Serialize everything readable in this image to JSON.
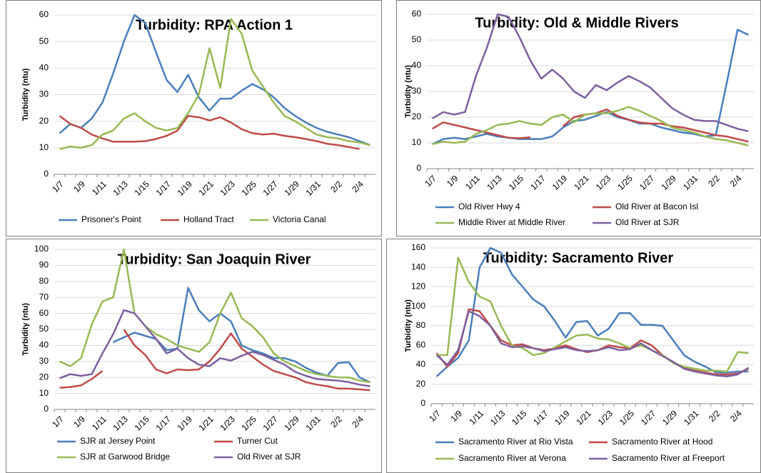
{
  "chart_data": [
    {
      "type": "line",
      "title": "Turbidity: RPA Action 1",
      "y_label": "Turbidity (ntu)",
      "categories": [
        "1/7",
        null,
        "1/9",
        null,
        "1/11",
        null,
        "1/13",
        null,
        "1/15",
        null,
        "1/17",
        null,
        "1/19",
        null,
        "1/21",
        null,
        "1/23",
        null,
        "1/25",
        null,
        "1/27",
        null,
        "1/29",
        null,
        "1/31",
        null,
        "2/2",
        null,
        "2/4",
        null
      ],
      "series": [
        {
          "name": "Prisoner's Point",
          "color": "#4a7ebb",
          "values": [
            15.5,
            19,
            17.5,
            21,
            27,
            38,
            50,
            60,
            57,
            46,
            35.5,
            31,
            37.5,
            29,
            24,
            28.5,
            28.5,
            31.5,
            34,
            32,
            29,
            25,
            22,
            19.5,
            17.5,
            16,
            15,
            14,
            12.5,
            11
          ]
        },
        {
          "name": "Holland Tract",
          "color": "#be4b48",
          "values": [
            22,
            19,
            17.5,
            15,
            13.5,
            12.3,
            12.3,
            12.3,
            12.5,
            13.3,
            14.5,
            16.5,
            22,
            21.5,
            20.3,
            21.5,
            19.5,
            17,
            15.5,
            15,
            15.3,
            14.5,
            14,
            13.3,
            12.5,
            11.5,
            11,
            10.3,
            9.5,
            null
          ]
        },
        {
          "name": "Victoria Canal",
          "color": "#98b954",
          "values": [
            9.5,
            10.5,
            10,
            11,
            15,
            16.5,
            21,
            23,
            20,
            17.5,
            16.5,
            17.5,
            23,
            30,
            47.5,
            32.5,
            58.5,
            53,
            39,
            33,
            27,
            22,
            20,
            17.5,
            15,
            14,
            13.5,
            12.5,
            12,
            11
          ]
        }
      ],
      "ylim": [
        0,
        60
      ],
      "yticks": [
        0,
        10,
        20,
        30,
        40,
        50,
        60
      ],
      "grid": true
    },
    {
      "type": "line",
      "title": "Turbidity: Old & Middle Rivers",
      "y_label": "Turbidity (ntu)",
      "categories": [
        "1/7",
        null,
        "1/9",
        null,
        "1/11",
        null,
        "1/13",
        null,
        "1/15",
        null,
        "1/17",
        null,
        "1/19",
        null,
        "1/21",
        null,
        "1/23",
        null,
        "1/25",
        null,
        "1/27",
        null,
        "1/29",
        null,
        "1/31",
        null,
        "2/2",
        null,
        "2/4",
        null
      ],
      "series": [
        {
          "name": "Old River Hwy 4",
          "color": "#4a7ebb",
          "values": [
            9.5,
            11.5,
            12,
            11.5,
            12.5,
            13.5,
            12.5,
            12,
            11.5,
            11.5,
            11.5,
            12.5,
            16,
            18.5,
            19,
            20.5,
            22,
            20,
            19,
            17.5,
            17.5,
            16,
            15,
            14,
            13.5,
            12.5,
            13,
            33,
            54,
            52
          ]
        },
        {
          "name": "Old River at Bacon Isl",
          "color": "#be4b48",
          "values": [
            15.5,
            18,
            17,
            16,
            15,
            14,
            13,
            12,
            11.8,
            12.2,
            null,
            null,
            16.5,
            20,
            21,
            21.5,
            23,
            20.5,
            19,
            18,
            17.5,
            17.5,
            16.5,
            16,
            15,
            14,
            13,
            12.5,
            11.5,
            10.5
          ]
        },
        {
          "name": "Middle River at Middle River",
          "color": "#98b954",
          "values": [
            9.5,
            10.5,
            10,
            10.5,
            13.5,
            15,
            17,
            17.5,
            18.5,
            17.5,
            17,
            20,
            21,
            18,
            21,
            21.5,
            21.5,
            22.5,
            24,
            22.5,
            20.5,
            18.5,
            16,
            15,
            14,
            12.5,
            11.5,
            11,
            10,
            9
          ]
        },
        {
          "name": "Old River at SJR",
          "color": "#7d60a0",
          "values": [
            19.5,
            22,
            21,
            22,
            36,
            47,
            60,
            59,
            51,
            42,
            35,
            38.5,
            35,
            30,
            27.5,
            32.5,
            30.5,
            33.5,
            36,
            34,
            31.5,
            27.5,
            23.5,
            21,
            19,
            18.5,
            18.5,
            17,
            15.5,
            14.5
          ]
        }
      ],
      "ylim": [
        0,
        60
      ],
      "yticks": [
        0,
        10,
        20,
        30,
        40,
        50,
        60
      ],
      "grid": true
    },
    {
      "type": "line",
      "title": "Turbidity: San Joaquin River",
      "y_label": "Turbidity (ntu)",
      "categories": [
        "1/7",
        null,
        "1/9",
        null,
        "1/11",
        null,
        "1/13",
        null,
        "1/15",
        null,
        "1/17",
        null,
        "1/19",
        null,
        "1/21",
        null,
        "1/23",
        null,
        "1/25",
        null,
        "1/27",
        null,
        "1/29",
        null,
        "1/31",
        null,
        "2/2",
        null,
        "2/4",
        null
      ],
      "series": [
        {
          "name": "SJR at Jersey Point",
          "color": "#4a7ebb",
          "values": [
            null,
            null,
            null,
            null,
            null,
            42,
            45,
            48,
            46,
            44,
            37,
            38,
            76,
            62,
            55,
            60,
            55,
            40,
            37,
            35,
            32,
            32,
            30,
            26,
            23,
            21,
            29,
            29.5,
            20,
            17
          ]
        },
        {
          "name": "Turner Cut",
          "color": "#be4b48",
          "values": [
            13.5,
            14,
            15,
            19,
            24,
            null,
            50,
            40,
            34,
            25,
            22.5,
            25,
            24.5,
            25,
            30,
            38,
            47.5,
            38,
            33,
            28,
            24,
            22,
            20,
            17,
            15.5,
            14.5,
            13,
            13,
            12.5,
            12
          ]
        },
        {
          "name": "SJR at Garwood Bridge",
          "color": "#98b954",
          "values": [
            30,
            27,
            32,
            53,
            67.5,
            70,
            100,
            60,
            52,
            47,
            44,
            40,
            38,
            36,
            42,
            60,
            73,
            57,
            52,
            45,
            35,
            30,
            27,
            24,
            22,
            21,
            20,
            20,
            18,
            17
          ]
        },
        {
          "name": "Old River at SJR",
          "color": "#7d60a0",
          "values": [
            19.5,
            22,
            21,
            22,
            35,
            47,
            62,
            60,
            52,
            44,
            35,
            38,
            32,
            28,
            27,
            32,
            30.5,
            33.5,
            36,
            34,
            31,
            28,
            23.5,
            21,
            19,
            18.5,
            18,
            17,
            15.5,
            14.5
          ]
        }
      ],
      "ylim": [
        0,
        100
      ],
      "yticks": [
        0,
        10,
        20,
        30,
        40,
        50,
        60,
        70,
        80,
        90,
        100
      ],
      "grid": true
    },
    {
      "type": "line",
      "title": "Turbidity: Sacramento River",
      "y_label": "Turbidity (ntu)",
      "categories": [
        "1/7",
        null,
        "1/9",
        null,
        "1/11",
        null,
        "1/13",
        null,
        "1/15",
        null,
        "1/17",
        null,
        "1/19",
        null,
        "1/21",
        null,
        "1/23",
        null,
        "1/25",
        null,
        "1/27",
        null,
        "1/29",
        null,
        "1/31",
        null,
        "2/2",
        null,
        "2/4",
        null
      ],
      "series": [
        {
          "name": "Sacramento River at Rio Vista",
          "color": "#4a7ebb",
          "values": [
            28,
            38,
            47,
            65,
            140,
            160,
            155,
            133,
            120,
            107,
            100,
            85,
            68,
            84,
            85,
            70,
            77,
            93,
            93,
            81,
            81,
            80,
            65,
            50,
            43,
            38,
            32,
            32,
            33,
            33
          ]
        },
        {
          "name": "Sacramento River at Hood",
          "color": "#be4b48",
          "values": [
            52,
            38,
            52,
            97,
            95,
            80,
            65,
            60,
            61,
            57,
            55,
            57,
            60,
            56,
            53,
            55,
            60,
            58,
            57,
            65,
            60,
            50,
            42,
            37,
            34,
            32,
            30,
            30,
            31,
            36
          ]
        },
        {
          "name": "Sacramento River at Verona",
          "color": "#98b954",
          "values": [
            50,
            50,
            150,
            125,
            110,
            105,
            80,
            60,
            57,
            50,
            52,
            58,
            64,
            70,
            71,
            67,
            66,
            62,
            57,
            60,
            55,
            50,
            42,
            38,
            36,
            34,
            34,
            33,
            53,
            52
          ]
        },
        {
          "name": "Sacramento River at Freeport",
          "color": "#7d60a0",
          "values": [
            50,
            40,
            55,
            95,
            90,
            80,
            62,
            58,
            59,
            57,
            54,
            56,
            58,
            55,
            54,
            55,
            58,
            55,
            56,
            62,
            55,
            49,
            43,
            36,
            33,
            31,
            29,
            28,
            30,
            37
          ]
        }
      ],
      "ylim": [
        0,
        160
      ],
      "yticks": [
        0,
        20,
        40,
        60,
        80,
        100,
        120,
        140,
        160
      ],
      "grid": true
    }
  ]
}
